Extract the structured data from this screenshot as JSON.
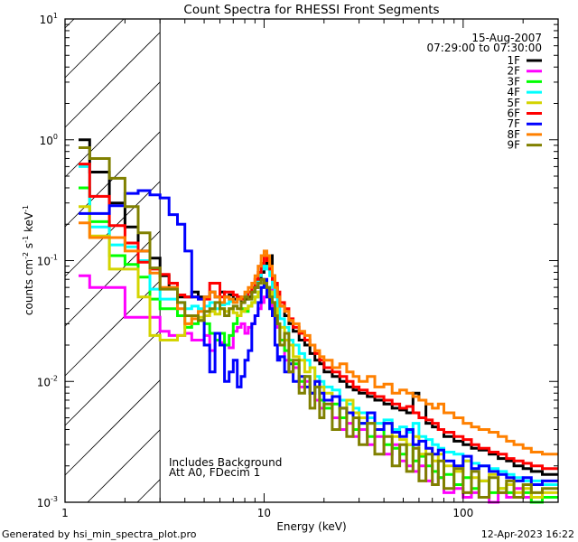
{
  "chart_data": {
    "type": "line",
    "title": "Count Spectra for RHESSI Front Segments",
    "xlabel": "Energy (keV)",
    "ylabel": {
      "base": "counts cm",
      "exp1": "-2",
      "mid": " s",
      "exp2": "-1",
      "mid2": " keV",
      "exp3": "-1"
    },
    "xscale": "log",
    "yscale": "log",
    "xlim": [
      1,
      300
    ],
    "ylim": [
      0.001,
      10
    ],
    "x_ticks": [
      {
        "value": 1,
        "label": "1"
      },
      {
        "value": 10,
        "label": "10"
      },
      {
        "value": 100,
        "label": "100"
      }
    ],
    "y_ticks": [
      {
        "value": 10,
        "base": "10",
        "exp": "1"
      },
      {
        "value": 1,
        "base": "10",
        "exp": "0"
      },
      {
        "value": 0.1,
        "base": "10",
        "exp": "-1"
      },
      {
        "value": 0.01,
        "base": "10",
        "exp": "-2"
      },
      {
        "value": 0.001,
        "base": "10",
        "exp": "-3"
      }
    ],
    "hatched_region_keV": [
      1,
      3
    ],
    "legend_placement": "top-right",
    "date": "15-Aug-2007",
    "time_range": "07:29:00 to 07:30:00",
    "annotations": [
      "Includes Background",
      "Att A0, FDecim 1"
    ],
    "energy_edges": [
      1.17,
      1.33,
      1.67,
      2.0,
      2.33,
      2.67,
      3.0,
      3.33,
      3.67,
      4.0,
      4.33,
      4.67,
      5.0,
      5.33,
      5.67,
      6.0,
      6.33,
      6.67,
      7.0,
      7.33,
      7.67,
      8.0,
      8.33,
      8.67,
      9.0,
      9.33,
      9.67,
      10.0,
      10.33,
      10.67,
      11.0,
      11.33,
      11.67,
      12.0,
      12.67,
      13.33,
      14.0,
      15,
      16,
      17,
      18,
      19,
      20,
      22,
      24,
      26,
      28,
      30,
      33,
      36,
      40,
      44,
      48,
      52,
      56,
      60,
      65,
      70,
      75,
      80,
      90,
      100,
      110,
      120,
      135,
      150,
      165,
      180,
      200,
      220,
      250,
      300
    ],
    "series": [
      {
        "name": "1F",
        "color": "#000000",
        "values": [
          1.0,
          0.54,
          0.3,
          0.19,
          0.12,
          0.105,
          0.075,
          0.06,
          0.05,
          0.05,
          0.055,
          0.05,
          0.05,
          0.055,
          0.05,
          0.055,
          0.05,
          0.052,
          0.048,
          0.05,
          0.045,
          0.048,
          0.05,
          0.055,
          0.06,
          0.07,
          0.08,
          0.09,
          0.1,
          0.11,
          0.075,
          0.06,
          0.05,
          0.042,
          0.035,
          0.03,
          0.026,
          0.022,
          0.02,
          0.017,
          0.015,
          0.014,
          0.012,
          0.011,
          0.01,
          0.009,
          0.0085,
          0.008,
          0.0075,
          0.007,
          0.0065,
          0.006,
          0.0058,
          0.0055,
          0.008,
          0.007,
          0.0045,
          0.0042,
          0.004,
          0.0035,
          0.0032,
          0.003,
          0.0028,
          0.0027,
          0.0025,
          0.0023,
          0.0022,
          0.002,
          0.0019,
          0.0018,
          0.0017
        ]
      },
      {
        "name": "2F",
        "color": "#ff00ff",
        "values": [
          0.075,
          0.06,
          0.06,
          0.034,
          0.034,
          0.034,
          0.026,
          0.024,
          0.024,
          0.025,
          0.022,
          0.022,
          0.024,
          0.018,
          0.022,
          0.021,
          0.02,
          0.019,
          0.026,
          0.028,
          0.03,
          0.025,
          0.028,
          0.03,
          0.035,
          0.04,
          0.045,
          0.05,
          0.055,
          0.06,
          0.04,
          0.033,
          0.028,
          0.022,
          0.015,
          0.012,
          0.013,
          0.009,
          0.01,
          0.008,
          0.007,
          0.006,
          0.007,
          0.005,
          0.004,
          0.0045,
          0.0035,
          0.004,
          0.003,
          0.0035,
          0.0025,
          0.003,
          0.0022,
          0.002,
          0.0018,
          0.002,
          0.0015,
          0.0014,
          0.0016,
          0.0012,
          0.0013,
          0.0011,
          0.0012,
          0.0015,
          0.001,
          0.0012,
          0.0011,
          0.0013,
          0.0011,
          0.001,
          0.0011
        ]
      },
      {
        "name": "3F",
        "color": "#00ff00",
        "values": [
          0.4,
          0.21,
          0.11,
          0.093,
          0.073,
          0.048,
          0.04,
          0.04,
          0.035,
          0.028,
          0.03,
          0.032,
          0.03,
          0.025,
          0.022,
          0.025,
          0.02,
          0.024,
          0.03,
          0.035,
          0.04,
          0.038,
          0.042,
          0.045,
          0.05,
          0.055,
          0.06,
          0.065,
          0.06,
          0.055,
          0.045,
          0.035,
          0.03,
          0.022,
          0.018,
          0.015,
          0.014,
          0.01,
          0.011,
          0.008,
          0.009,
          0.007,
          0.006,
          0.0065,
          0.005,
          0.0055,
          0.004,
          0.0045,
          0.0035,
          0.004,
          0.003,
          0.0028,
          0.0025,
          0.003,
          0.0022,
          0.0024,
          0.002,
          0.0018,
          0.0016,
          0.0017,
          0.0014,
          0.0016,
          0.0013,
          0.0015,
          0.0012,
          0.0013,
          0.0012,
          0.0011,
          0.0012,
          0.001,
          0.0011
        ]
      },
      {
        "name": "4F",
        "color": "#00ffff",
        "values": [
          0.6,
          0.19,
          0.135,
          0.13,
          0.1,
          0.058,
          0.048,
          0.048,
          0.045,
          0.04,
          0.042,
          0.04,
          0.042,
          0.045,
          0.04,
          0.043,
          0.044,
          0.046,
          0.045,
          0.048,
          0.05,
          0.052,
          0.055,
          0.06,
          0.065,
          0.075,
          0.085,
          0.09,
          0.085,
          0.075,
          0.06,
          0.05,
          0.04,
          0.033,
          0.028,
          0.022,
          0.02,
          0.017,
          0.015,
          0.013,
          0.011,
          0.01,
          0.009,
          0.0085,
          0.007,
          0.0065,
          0.006,
          0.0055,
          0.005,
          0.0045,
          0.0048,
          0.004,
          0.0042,
          0.0038,
          0.0045,
          0.0035,
          0.0033,
          0.003,
          0.0028,
          0.0026,
          0.0025,
          0.0022,
          0.0021,
          0.002,
          0.0019,
          0.0018,
          0.0017,
          0.0016,
          0.0015,
          0.0015,
          0.0014
        ]
      },
      {
        "name": "5F",
        "color": "#d4d400",
        "values": [
          0.28,
          0.16,
          0.085,
          0.085,
          0.05,
          0.024,
          0.022,
          0.022,
          0.024,
          0.03,
          0.035,
          0.034,
          0.035,
          0.038,
          0.036,
          0.04,
          0.038,
          0.04,
          0.037,
          0.035,
          0.038,
          0.04,
          0.042,
          0.045,
          0.05,
          0.055,
          0.06,
          0.065,
          0.06,
          0.055,
          0.045,
          0.04,
          0.03,
          0.028,
          0.022,
          0.02,
          0.016,
          0.015,
          0.012,
          0.013,
          0.01,
          0.009,
          0.008,
          0.0075,
          0.006,
          0.007,
          0.0055,
          0.005,
          0.0045,
          0.004,
          0.0045,
          0.0035,
          0.0033,
          0.003,
          0.0035,
          0.0025,
          0.0028,
          0.0022,
          0.0025,
          0.002,
          0.0018,
          0.0022,
          0.0016,
          0.0015,
          0.0017,
          0.0013,
          0.0014,
          0.0012,
          0.0013,
          0.0011,
          0.0012
        ]
      },
      {
        "name": "6F",
        "color": "#ff0000",
        "values": [
          0.63,
          0.34,
          0.195,
          0.14,
          0.097,
          0.085,
          0.077,
          0.065,
          0.052,
          0.05,
          0.05,
          0.048,
          0.048,
          0.065,
          0.065,
          0.05,
          0.055,
          0.055,
          0.052,
          0.05,
          0.048,
          0.05,
          0.055,
          0.06,
          0.07,
          0.08,
          0.095,
          0.11,
          0.1,
          0.085,
          0.07,
          0.065,
          0.055,
          0.045,
          0.04,
          0.033,
          0.028,
          0.025,
          0.022,
          0.02,
          0.017,
          0.015,
          0.013,
          0.012,
          0.011,
          0.01,
          0.009,
          0.0085,
          0.008,
          0.0075,
          0.007,
          0.0065,
          0.006,
          0.0062,
          0.0055,
          0.005,
          0.0048,
          0.0045,
          0.004,
          0.0038,
          0.0035,
          0.0033,
          0.003,
          0.0028,
          0.0026,
          0.0025,
          0.0023,
          0.0022,
          0.0021,
          0.002,
          0.0019
        ]
      },
      {
        "name": "7F",
        "color": "#0000ff",
        "values": [
          0.245,
          0.245,
          0.285,
          0.36,
          0.38,
          0.35,
          0.33,
          0.24,
          0.2,
          0.12,
          0.05,
          0.048,
          0.02,
          0.012,
          0.025,
          0.02,
          0.01,
          0.012,
          0.015,
          0.009,
          0.011,
          0.015,
          0.018,
          0.03,
          0.035,
          0.045,
          0.06,
          0.07,
          0.05,
          0.04,
          0.035,
          0.02,
          0.015,
          0.016,
          0.012,
          0.014,
          0.01,
          0.011,
          0.009,
          0.008,
          0.01,
          0.008,
          0.007,
          0.0075,
          0.006,
          0.0055,
          0.005,
          0.0045,
          0.0055,
          0.004,
          0.0045,
          0.0038,
          0.0035,
          0.004,
          0.003,
          0.0032,
          0.0028,
          0.0025,
          0.0027,
          0.0022,
          0.002,
          0.0024,
          0.0019,
          0.002,
          0.0018,
          0.0017,
          0.0016,
          0.0015,
          0.0016,
          0.0014,
          0.0015
        ]
      },
      {
        "name": "8F",
        "color": "#ff8000",
        "values": [
          0.205,
          0.155,
          0.155,
          0.12,
          0.12,
          0.079,
          0.06,
          0.06,
          0.04,
          0.03,
          0.033,
          0.038,
          0.05,
          0.055,
          0.05,
          0.045,
          0.05,
          0.048,
          0.045,
          0.048,
          0.05,
          0.055,
          0.06,
          0.065,
          0.075,
          0.09,
          0.11,
          0.12,
          0.11,
          0.09,
          0.075,
          0.06,
          0.05,
          0.042,
          0.038,
          0.032,
          0.03,
          0.026,
          0.024,
          0.02,
          0.018,
          0.016,
          0.015,
          0.013,
          0.014,
          0.012,
          0.011,
          0.01,
          0.011,
          0.009,
          0.0095,
          0.008,
          0.0085,
          0.008,
          0.0075,
          0.007,
          0.0065,
          0.006,
          0.0065,
          0.0055,
          0.005,
          0.0045,
          0.0042,
          0.004,
          0.0038,
          0.0035,
          0.0032,
          0.003,
          0.0028,
          0.0026,
          0.0025
        ]
      },
      {
        "name": "9F",
        "color": "#808000",
        "values": [
          0.86,
          0.7,
          0.48,
          0.28,
          0.17,
          0.087,
          0.058,
          0.058,
          0.045,
          0.035,
          0.035,
          0.032,
          0.038,
          0.04,
          0.045,
          0.04,
          0.035,
          0.04,
          0.042,
          0.04,
          0.045,
          0.05,
          0.048,
          0.055,
          0.06,
          0.065,
          0.07,
          0.065,
          0.06,
          0.05,
          0.045,
          0.035,
          0.03,
          0.02,
          0.025,
          0.012,
          0.015,
          0.008,
          0.011,
          0.006,
          0.009,
          0.005,
          0.0065,
          0.004,
          0.006,
          0.0035,
          0.005,
          0.003,
          0.0045,
          0.0025,
          0.0035,
          0.002,
          0.003,
          0.0018,
          0.0028,
          0.0015,
          0.0025,
          0.0014,
          0.0022,
          0.0013,
          0.0019,
          0.0012,
          0.0018,
          0.0011,
          0.0016,
          0.0012,
          0.0015,
          0.0011,
          0.0014,
          0.0012,
          0.0013
        ]
      }
    ]
  },
  "footer": {
    "generated_by": "Generated by hsi_min_spectra_plot.pro",
    "timestamp": "12-Apr-2023 16:22"
  }
}
